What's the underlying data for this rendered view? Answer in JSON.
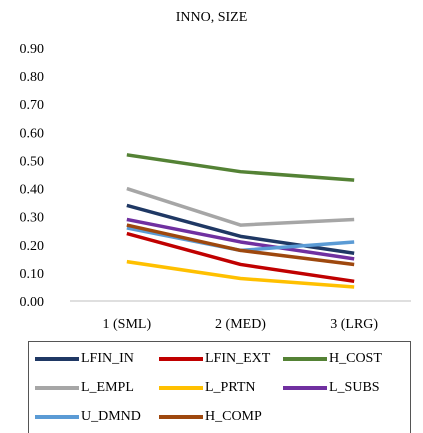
{
  "chart_data": {
    "type": "line",
    "title": "INNO, SIZE",
    "categories": [
      "1 (SML)",
      "2 (MED)",
      "3 (LRG)"
    ],
    "ylim": [
      0,
      0.9
    ],
    "yticks": [
      "0.00",
      "0.10",
      "0.20",
      "0.30",
      "0.40",
      "0.50",
      "0.60",
      "0.70",
      "0.80",
      "0.90"
    ],
    "grid": false,
    "legend_position": "bottom",
    "series": [
      {
        "name": "LFIN_IN",
        "color": "#1f3864",
        "values": [
          0.34,
          0.23,
          0.17
        ]
      },
      {
        "name": "LFIN_EXT",
        "color": "#c00000",
        "values": [
          0.24,
          0.13,
          0.07
        ]
      },
      {
        "name": "H_COST",
        "color": "#548235",
        "values": [
          0.52,
          0.46,
          0.43
        ]
      },
      {
        "name": "L_EMPL",
        "color": "#a6a6a6",
        "values": [
          0.4,
          0.27,
          0.29
        ]
      },
      {
        "name": "L_PRTN",
        "color": "#ffc000",
        "values": [
          0.14,
          0.08,
          0.05
        ]
      },
      {
        "name": "L_SUBS",
        "color": "#7030a0",
        "values": [
          0.29,
          0.21,
          0.15
        ]
      },
      {
        "name": "U_DMND",
        "color": "#5b9bd5",
        "values": [
          0.26,
          0.18,
          0.21
        ]
      },
      {
        "name": "H_COMP",
        "color": "#9e480e",
        "values": [
          0.27,
          0.18,
          0.13
        ]
      }
    ]
  }
}
